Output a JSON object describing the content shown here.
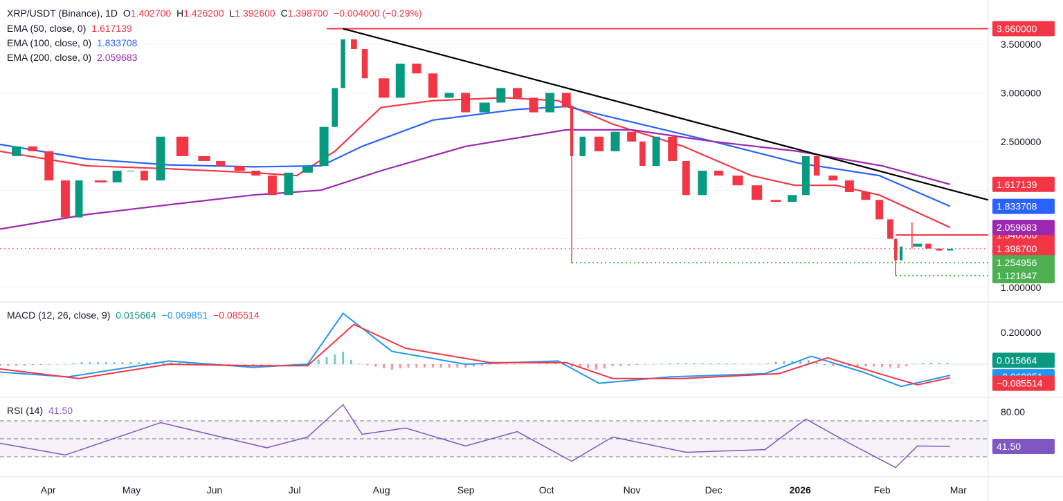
{
  "header": {
    "symbol": "XRP/USDT (Binance), 1D",
    "open_label": "O",
    "open": "1.402700",
    "high_label": "H",
    "high": "1.426200",
    "low_label": "L",
    "low": "1.392600",
    "close_label": "C",
    "close": "1.398700",
    "change": "−0.004000 (−0.29%)"
  },
  "ema_legend": [
    {
      "label": "EMA (50, close, 0)",
      "value": "1.617139",
      "color": "#f23645"
    },
    {
      "label": "EMA (100, close, 0)",
      "value": "1.833708",
      "color": "#2962ff"
    },
    {
      "label": "EMA (200, close, 0)",
      "value": "2.059683",
      "color": "#9c27b0"
    }
  ],
  "macd_legend": {
    "label": "MACD (12, 26, close, 9)",
    "hist": "0.015664",
    "macd": "−0.069851",
    "signal": "−0.085514"
  },
  "rsi_legend": {
    "label": "RSI (14)",
    "value": "41.50"
  },
  "colors": {
    "up": "#089981",
    "down": "#f23645",
    "ema50": "#f23645",
    "ema100": "#2962ff",
    "ema200": "#9c27b0",
    "trend": "#000000",
    "rsi": "#7e57c2",
    "macd": "#2196f3",
    "signal": "#f23645",
    "support": "#4caf50"
  },
  "chart_data": [
    {
      "type": "line",
      "title": "XRP/USDT (Binance), 1D",
      "price_axis_ticks": [
        "3.500000",
        "3.000000",
        "2.500000",
        "1.000000"
      ],
      "ylim": [
        0.93,
        3.78
      ],
      "time_axis": [
        "Apr",
        "May",
        "Jun",
        "Jul",
        "Aug",
        "Sep",
        "Oct",
        "Nov",
        "Dec",
        "2026",
        "Feb",
        "Mar"
      ],
      "close_path": [
        [
          "2025-03-14",
          2.35
        ],
        [
          "2025-03-20",
          2.45
        ],
        [
          "2025-03-26",
          2.4
        ],
        [
          "2025-04-01",
          2.1
        ],
        [
          "2025-04-07",
          1.72
        ],
        [
          "2025-04-12",
          2.1
        ],
        [
          "2025-04-20",
          2.08
        ],
        [
          "2025-04-26",
          2.2
        ],
        [
          "2025-05-01",
          2.2
        ],
        [
          "2025-05-06",
          2.1
        ],
        [
          "2025-05-12",
          2.55
        ],
        [
          "2025-05-20",
          2.35
        ],
        [
          "2025-05-28",
          2.3
        ],
        [
          "2025-06-03",
          2.25
        ],
        [
          "2025-06-10",
          2.2
        ],
        [
          "2025-06-16",
          2.15
        ],
        [
          "2025-06-22",
          1.95
        ],
        [
          "2025-06-28",
          2.18
        ],
        [
          "2025-07-05",
          2.25
        ],
        [
          "2025-07-11",
          2.65
        ],
        [
          "2025-07-15",
          3.05
        ],
        [
          "2025-07-18",
          3.55
        ],
        [
          "2025-07-22",
          3.45
        ],
        [
          "2025-07-26",
          3.15
        ],
        [
          "2025-08-02",
          2.95
        ],
        [
          "2025-08-08",
          3.3
        ],
        [
          "2025-08-14",
          3.2
        ],
        [
          "2025-08-20",
          2.95
        ],
        [
          "2025-08-26",
          3.0
        ],
        [
          "2025-09-01",
          2.8
        ],
        [
          "2025-09-08",
          2.9
        ],
        [
          "2025-09-14",
          3.05
        ],
        [
          "2025-09-20",
          2.95
        ],
        [
          "2025-09-26",
          2.8
        ],
        [
          "2025-10-02",
          3.0
        ],
        [
          "2025-10-08",
          2.85
        ],
        [
          "2025-10-10",
          2.35
        ],
        [
          "2025-10-14",
          2.55
        ],
        [
          "2025-10-20",
          2.4
        ],
        [
          "2025-10-26",
          2.6
        ],
        [
          "2025-11-01",
          2.5
        ],
        [
          "2025-11-05",
          2.25
        ],
        [
          "2025-11-10",
          2.55
        ],
        [
          "2025-11-16",
          2.3
        ],
        [
          "2025-11-21",
          1.95
        ],
        [
          "2025-11-27",
          2.2
        ],
        [
          "2025-12-03",
          2.15
        ],
        [
          "2025-12-10",
          2.05
        ],
        [
          "2025-12-17",
          1.9
        ],
        [
          "2025-12-24",
          1.88
        ],
        [
          "2025-12-30",
          1.95
        ],
        [
          "2026-01-04",
          2.35
        ],
        [
          "2026-01-08",
          2.15
        ],
        [
          "2026-01-14",
          2.1
        ],
        [
          "2026-01-20",
          1.98
        ],
        [
          "2026-01-26",
          1.9
        ],
        [
          "2026-01-31",
          1.7
        ],
        [
          "2026-02-04",
          1.5
        ],
        [
          "2026-02-06",
          1.28
        ],
        [
          "2026-02-08",
          1.42
        ],
        [
          "2026-02-14",
          1.45
        ],
        [
          "2026-02-18",
          1.4
        ],
        [
          "2026-02-22",
          1.38
        ],
        [
          "2026-02-26",
          1.3987
        ]
      ],
      "series": [
        {
          "name": "EMA (50, close, 0)",
          "values": [
            [
              "2025-03-14",
              2.4
            ],
            [
              "2025-04-15",
              2.25
            ],
            [
              "2025-05-15",
              2.22
            ],
            [
              "2025-06-15",
              2.18
            ],
            [
              "2025-07-01",
              2.15
            ],
            [
              "2025-07-15",
              2.4
            ],
            [
              "2025-08-01",
              2.85
            ],
            [
              "2025-08-20",
              2.92
            ],
            [
              "2025-09-15",
              2.95
            ],
            [
              "2025-10-05",
              2.92
            ],
            [
              "2025-10-25",
              2.68
            ],
            [
              "2025-11-20",
              2.45
            ],
            [
              "2025-12-15",
              2.15
            ],
            [
              "2025-12-31",
              2.05
            ],
            [
              "2026-01-15",
              2.05
            ],
            [
              "2026-01-31",
              1.95
            ],
            [
              "2026-02-26",
              1.617139
            ]
          ]
        },
        {
          "name": "EMA (100, close, 0)",
          "values": [
            [
              "2025-03-14",
              2.47
            ],
            [
              "2025-04-15",
              2.32
            ],
            [
              "2025-05-15",
              2.26
            ],
            [
              "2025-06-15",
              2.24
            ],
            [
              "2025-07-10",
              2.25
            ],
            [
              "2025-07-25",
              2.45
            ],
            [
              "2025-08-20",
              2.72
            ],
            [
              "2025-09-20",
              2.83
            ],
            [
              "2025-10-08",
              2.86
            ],
            [
              "2025-11-01",
              2.7
            ],
            [
              "2025-12-01",
              2.5
            ],
            [
              "2026-01-01",
              2.28
            ],
            [
              "2026-01-31",
              2.15
            ],
            [
              "2026-02-26",
              1.833708
            ]
          ]
        },
        {
          "name": "EMA (200, close, 0)",
          "values": [
            [
              "2025-03-14",
              1.6
            ],
            [
              "2025-04-15",
              1.75
            ],
            [
              "2025-05-15",
              1.85
            ],
            [
              "2025-06-15",
              1.95
            ],
            [
              "2025-07-10",
              2.0
            ],
            [
              "2025-08-01",
              2.2
            ],
            [
              "2025-09-01",
              2.45
            ],
            [
              "2025-10-08",
              2.62
            ],
            [
              "2025-11-01",
              2.62
            ],
            [
              "2025-12-01",
              2.5
            ],
            [
              "2026-01-01",
              2.4
            ],
            [
              "2026-02-01",
              2.25
            ],
            [
              "2026-02-26",
              2.059683
            ]
          ]
        },
        {
          "name": "Trendline",
          "values": [
            [
              "2025-07-18",
              3.66
            ],
            [
              "2026-03-12",
              1.9
            ]
          ]
        }
      ],
      "horizontal_levels": [
        {
          "value": 3.66,
          "label": "3.660000",
          "color": "#f23645",
          "style": "solid",
          "from": "2025-07-12"
        },
        {
          "value": 1.54,
          "label": "1.540000",
          "color": "#f23645",
          "style": "solid",
          "from": "2026-02-06"
        },
        {
          "value": 1.3987,
          "label": "1.398700",
          "color": "#f23645",
          "style": "dotted",
          "from": "2025-03-14"
        },
        {
          "value": 1.254956,
          "label": "1.254956",
          "color": "#4caf50",
          "style": "dotted",
          "from": "2025-10-10"
        },
        {
          "value": 1.121847,
          "label": "1.121847",
          "color": "#4caf50",
          "style": "dotted",
          "from": "2026-02-06"
        }
      ],
      "axis_tags": [
        {
          "label": "2.059683",
          "color": "#9c27b0"
        },
        {
          "label": "1.833708",
          "color": "#2962ff"
        },
        {
          "label": "1.617139",
          "color": "#f23645"
        }
      ],
      "wicks": [
        {
          "date": "2025-10-10",
          "low": 1.25,
          "high": 2.6
        },
        {
          "date": "2026-02-06",
          "low": 1.12,
          "high": 1.5
        },
        {
          "date": "2026-02-12",
          "low": 1.4,
          "high": 1.67
        }
      ]
    },
    {
      "type": "line",
      "title": "MACD (12, 26, close, 9)",
      "ticks": [
        "0.200000"
      ],
      "ylim": [
        -0.25,
        0.45
      ],
      "series": [
        {
          "name": "MACD",
          "values": [
            [
              "2025-03-14",
              -0.05
            ],
            [
              "2025-04-08",
              -0.08
            ],
            [
              "2025-05-15",
              0.02
            ],
            [
              "2025-06-15",
              -0.02
            ],
            [
              "2025-07-05",
              0.0
            ],
            [
              "2025-07-18",
              0.32
            ],
            [
              "2025-08-05",
              0.08
            ],
            [
              "2025-09-01",
              0.0
            ],
            [
              "2025-10-05",
              0.02
            ],
            [
              "2025-10-20",
              -0.12
            ],
            [
              "2025-11-15",
              -0.08
            ],
            [
              "2025-12-20",
              -0.06
            ],
            [
              "2026-01-06",
              0.05
            ],
            [
              "2026-01-25",
              -0.05
            ],
            [
              "2026-02-08",
              -0.14
            ],
            [
              "2026-02-26",
              -0.069851
            ]
          ]
        },
        {
          "name": "Signal",
          "values": [
            [
              "2025-03-14",
              -0.03
            ],
            [
              "2025-04-12",
              -0.09
            ],
            [
              "2025-05-15",
              0.0
            ],
            [
              "2025-06-15",
              -0.01
            ],
            [
              "2025-07-05",
              -0.01
            ],
            [
              "2025-07-22",
              0.25
            ],
            [
              "2025-08-10",
              0.1
            ],
            [
              "2025-09-10",
              0.01
            ],
            [
              "2025-10-08",
              0.01
            ],
            [
              "2025-10-25",
              -0.09
            ],
            [
              "2025-11-20",
              -0.09
            ],
            [
              "2025-12-25",
              -0.06
            ],
            [
              "2026-01-12",
              0.04
            ],
            [
              "2026-01-31",
              -0.06
            ],
            [
              "2026-02-14",
              -0.13
            ],
            [
              "2026-02-26",
              -0.085514
            ]
          ]
        }
      ],
      "tags": [
        {
          "label": "0.015664",
          "color": "#089981"
        },
        {
          "label": "−0.069851",
          "color": "#2196f3"
        },
        {
          "label": "−0.085514",
          "color": "#f23645"
        }
      ]
    },
    {
      "type": "line",
      "title": "RSI (14)",
      "ticks": [
        "80.00"
      ],
      "ylim": [
        15,
        90
      ],
      "bands": [
        70,
        50,
        30
      ],
      "series": [
        {
          "name": "RSI",
          "values": [
            [
              "2025-03-14",
              45
            ],
            [
              "2025-04-07",
              32
            ],
            [
              "2025-05-12",
              68
            ],
            [
              "2025-06-20",
              40
            ],
            [
              "2025-07-05",
              52
            ],
            [
              "2025-07-18",
              88
            ],
            [
              "2025-07-25",
              55
            ],
            [
              "2025-08-10",
              62
            ],
            [
              "2025-09-01",
              42
            ],
            [
              "2025-09-20",
              58
            ],
            [
              "2025-10-10",
              25
            ],
            [
              "2025-10-25",
              52
            ],
            [
              "2025-11-21",
              35
            ],
            [
              "2025-12-20",
              38
            ],
            [
              "2026-01-04",
              72
            ],
            [
              "2026-01-20",
              45
            ],
            [
              "2026-02-06",
              18
            ],
            [
              "2026-02-14",
              42
            ],
            [
              "2026-02-26",
              41.5
            ]
          ]
        }
      ],
      "tags": [
        {
          "label": "41.50",
          "color": "#7e57c2"
        }
      ]
    }
  ]
}
